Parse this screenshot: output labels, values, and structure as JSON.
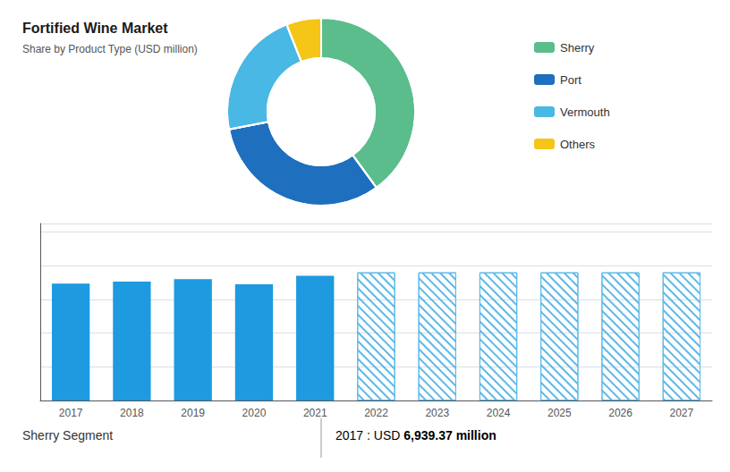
{
  "chart_data": [
    {
      "type": "pie",
      "title": "Fortified Wine Market",
      "subtitle": "Share by Product Type (USD million)",
      "categories": [
        "Sherry",
        "Port",
        "Vermouth",
        "Others"
      ],
      "values": [
        40,
        32,
        22,
        6
      ],
      "colors": [
        "#5BBD8C",
        "#1E6FBE",
        "#49B8E5",
        "#F5C518"
      ],
      "legend": "right"
    },
    {
      "type": "bar",
      "categories": [
        "2017",
        "2018",
        "2019",
        "2020",
        "2021",
        "2022",
        "2023",
        "2024",
        "2025",
        "2026",
        "2027"
      ],
      "series": [
        {
          "color": "#1E9AE0",
          "values": [
            6939,
            7050,
            7200,
            6900,
            7400,
            null,
            null,
            null,
            null,
            null,
            null
          ]
        },
        {
          "color": "#5BB8E8",
          "values": [
            null,
            null,
            null,
            null,
            null,
            7600,
            7600,
            7600,
            7600,
            7600,
            7600
          ]
        }
      ],
      "ylim": [
        0,
        10500
      ],
      "yticks": [
        0,
        2000,
        4000,
        6000,
        8000,
        10000
      ],
      "grid": true,
      "tick_labels": "x",
      "annotations": [
        "Sherry Segment",
        "2017 : USD ",
        "6,939.37 million"
      ]
    }
  ]
}
